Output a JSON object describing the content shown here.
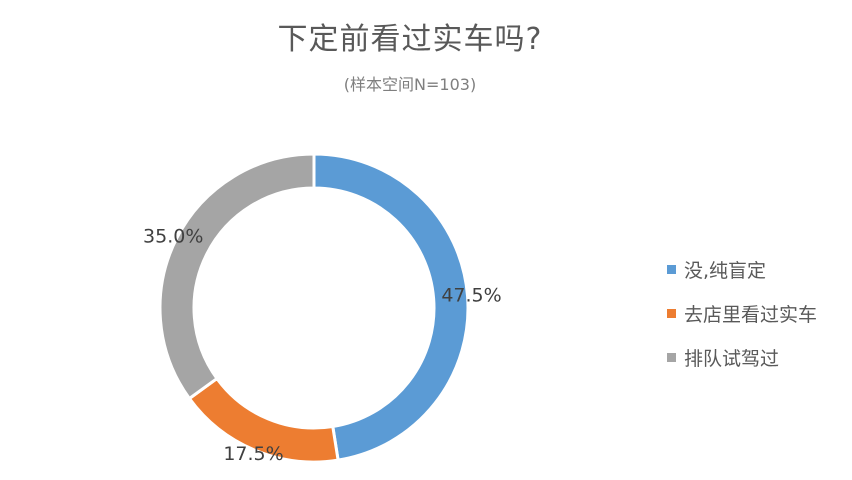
{
  "title": "下定前看过实车吗?",
  "subtitle": "(样本空间N=103)",
  "chart_data": {
    "type": "pie",
    "variant": "doughnut",
    "title": "下定前看过实车吗?",
    "subtitle": "(样本空间N=103)",
    "start_angle_deg": 0,
    "direction": "clockwise",
    "slices": [
      {
        "label": "没,纯盲定",
        "value": 47.5,
        "value_label": "47.5%",
        "color": "#5b9bd5"
      },
      {
        "label": "去店里看过实车",
        "value": 17.5,
        "value_label": "17.5%",
        "color": "#ed7d31"
      },
      {
        "label": "排队试驾过",
        "value": 35.0,
        "value_label": "35.0%",
        "color": "#a5a5a5"
      }
    ],
    "legend_position": "right"
  }
}
